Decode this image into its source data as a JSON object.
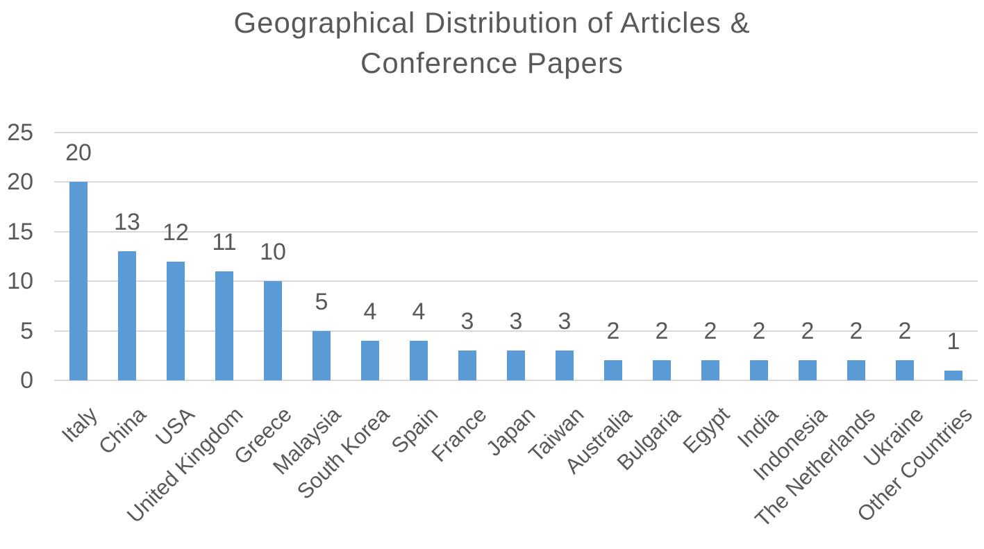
{
  "chart_data": {
    "type": "bar",
    "title": "Geographical Distribution of Articles & Conference Papers",
    "title_lines": [
      "Geographical Distribution of Articles &",
      "Conference Papers"
    ],
    "categories": [
      "Italy",
      "China",
      "USA",
      "United Kingdom",
      "Greece",
      "Malaysia",
      "South Korea",
      "Spain",
      "France",
      "Japan",
      "Taiwan",
      "Australia",
      "Bulgaria",
      "Egypt",
      "India",
      "Indonesia",
      "The Netherlands",
      "Ukraine",
      "Other Countries"
    ],
    "values": [
      20,
      13,
      12,
      11,
      10,
      5,
      4,
      4,
      3,
      3,
      3,
      2,
      2,
      2,
      2,
      2,
      2,
      2,
      1
    ],
    "data_labels": [
      20,
      13,
      12,
      11,
      10,
      5,
      4,
      4,
      3,
      3,
      3,
      2,
      2,
      2,
      2,
      2,
      2,
      2,
      1
    ],
    "xlabel": "",
    "ylabel": "",
    "ylim": [
      0,
      25
    ],
    "yticks": [
      0,
      5,
      10,
      15,
      20,
      25
    ],
    "grid": true,
    "legend": false,
    "colors": {
      "bar": "#5b9bd5",
      "gridline": "#d9d9d9",
      "text": "#595959",
      "background": "#ffffff"
    }
  }
}
